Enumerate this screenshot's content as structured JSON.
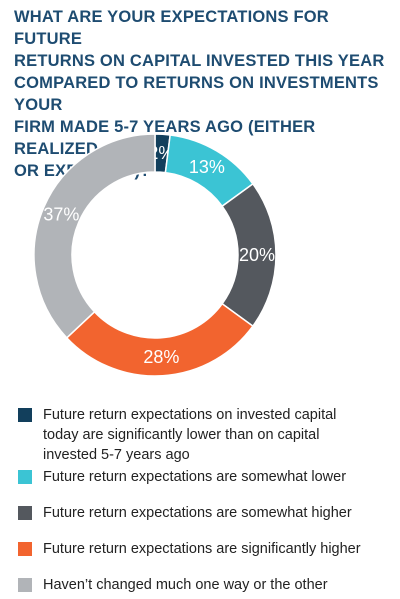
{
  "colors": {
    "title": "#1e4c71",
    "background": "#ffffff"
  },
  "chart_data": {
    "type": "pie",
    "variant": "donut",
    "title": [
      "WHAT ARE YOUR EXPECTATIONS FOR FUTURE",
      "RETURNS ON CAPITAL INVESTED THIS YEAR",
      "COMPARED TO RETURNS ON INVESTMENTS YOUR",
      "FIRM MADE 5-7 YEARS AGO (EITHER REALIZED",
      "OR EXPECTED)?"
    ],
    "legend_position": "bottom",
    "slices": [
      {
        "label": "Future return expectations on invested capital today are significantly lower than on capital invested 5-7 years ago",
        "value": 2,
        "display": "2%",
        "color": "#123f5c"
      },
      {
        "label": "Future return expectations are somewhat lower",
        "value": 13,
        "display": "13%",
        "color": "#3bc4d4"
      },
      {
        "label": "Future return expectations are somewhat higher",
        "value": 20,
        "display": "20%",
        "color": "#54585e"
      },
      {
        "label": "Future return expectations are significantly higher",
        "value": 28,
        "display": "28%",
        "color": "#f2642f"
      },
      {
        "label": "Haven’t changed much one way or the other",
        "value": 37,
        "display": "37%",
        "color": "#b1b4b8"
      }
    ]
  }
}
